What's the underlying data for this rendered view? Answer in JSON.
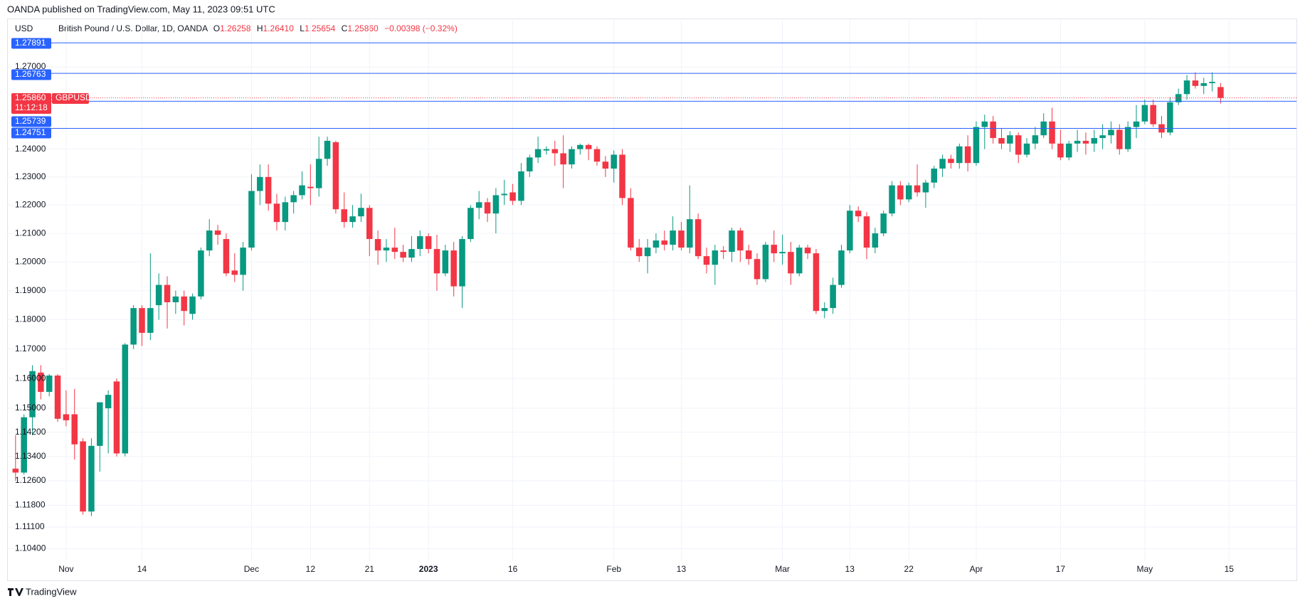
{
  "header": "OANDA published on TradingView.com, May 11, 2023 09:51 UTC",
  "footer": "TradingView",
  "chart_data": {
    "type": "candlestick",
    "currency": "USD",
    "legend": {
      "symbol": "British Pound / U.S. Dollar, 1D, OANDA",
      "o": "O",
      "open": "1.26258",
      "h": "H",
      "high": "1.26410",
      "l": "L",
      "low": "1.25654",
      "c": "C",
      "close": "1.25860",
      "change": "−0.00398 (−0.32%)"
    },
    "up_color": "#089981",
    "down_color": "#f23645",
    "level_color": "#2962ff",
    "log_scale": true,
    "grid": true,
    "ylim": [
      1.1,
      1.288
    ],
    "yticks": [
      {
        "value": 1.104,
        "label": "1.10400"
      },
      {
        "value": 1.111,
        "label": "1.11100"
      },
      {
        "value": 1.118,
        "label": "1.11800"
      },
      {
        "value": 1.126,
        "label": "1.12600"
      },
      {
        "value": 1.134,
        "label": "1.13400"
      },
      {
        "value": 1.142,
        "label": "1.14200"
      },
      {
        "value": 1.15,
        "label": "1.15000"
      },
      {
        "value": 1.16,
        "label": "1.16000"
      },
      {
        "value": 1.17,
        "label": "1.17000"
      },
      {
        "value": 1.18,
        "label": "1.18000"
      },
      {
        "value": 1.19,
        "label": "1.19000"
      },
      {
        "value": 1.2,
        "label": "1.20000"
      },
      {
        "value": 1.21,
        "label": "1.21000"
      },
      {
        "value": 1.22,
        "label": "1.22000"
      },
      {
        "value": 1.23,
        "label": "1.23000"
      },
      {
        "value": 1.24,
        "label": "1.24000"
      },
      {
        "value": 1.27,
        "label": "1.27000"
      }
    ],
    "xlim": [
      -1,
      152
    ],
    "xticks": [
      {
        "value": 6,
        "label": "Nov"
      },
      {
        "value": 15,
        "label": "14"
      },
      {
        "value": 28,
        "label": "Dec"
      },
      {
        "value": 35,
        "label": "12"
      },
      {
        "value": 42,
        "label": "21"
      },
      {
        "value": 49,
        "label": "2023"
      },
      {
        "value": 59,
        "label": "16"
      },
      {
        "value": 71,
        "label": "Feb"
      },
      {
        "value": 79,
        "label": "13"
      },
      {
        "value": 91,
        "label": "Mar"
      },
      {
        "value": 99,
        "label": "13"
      },
      {
        "value": 106,
        "label": "22"
      },
      {
        "value": 114,
        "label": "Apr"
      },
      {
        "value": 124,
        "label": "17"
      },
      {
        "value": 134,
        "label": "May"
      },
      {
        "value": 144,
        "label": "15"
      }
    ],
    "levels": [
      1.27891,
      1.26763,
      1.25739,
      1.24751
    ],
    "last_price": {
      "value": 1.2586,
      "label": "1.25860"
    },
    "symbol_tag": "GBPUSD",
    "countdown": "11:12:18",
    "ohlc": [
      [
        1.13,
        1.141,
        1.126,
        1.1287
      ],
      [
        1.1287,
        1.148,
        1.128,
        1.147
      ],
      [
        1.147,
        1.1645,
        1.141,
        1.1625
      ],
      [
        1.162,
        1.1645,
        1.153,
        1.1555
      ],
      [
        1.1555,
        1.1615,
        1.154,
        1.161
      ],
      [
        1.161,
        1.1615,
        1.1455,
        1.1465
      ],
      [
        1.148,
        1.156,
        1.144,
        1.146
      ],
      [
        1.148,
        1.1565,
        1.133,
        1.138
      ],
      [
        1.139,
        1.14,
        1.115,
        1.116
      ],
      [
        1.116,
        1.14,
        1.1145,
        1.1375
      ],
      [
        1.1375,
        1.152,
        1.129,
        1.152
      ],
      [
        1.15,
        1.156,
        1.135,
        1.1545
      ],
      [
        1.159,
        1.16,
        1.134,
        1.135
      ],
      [
        1.135,
        1.172,
        1.134,
        1.1715
      ],
      [
        1.1715,
        1.185,
        1.17,
        1.184
      ],
      [
        1.184,
        1.185,
        1.171,
        1.1755
      ],
      [
        1.1755,
        1.203,
        1.173,
        1.184
      ],
      [
        1.185,
        1.196,
        1.18,
        1.192
      ],
      [
        1.192,
        1.195,
        1.177,
        1.186
      ],
      [
        1.186,
        1.19,
        1.182,
        1.188
      ],
      [
        1.188,
        1.19,
        1.178,
        1.183
      ],
      [
        1.182,
        1.189,
        1.18,
        1.188
      ],
      [
        1.188,
        1.205,
        1.187,
        1.204
      ],
      [
        1.204,
        1.215,
        1.202,
        1.211
      ],
      [
        1.211,
        1.213,
        1.206,
        1.2095
      ],
      [
        1.208,
        1.21,
        1.195,
        1.196
      ],
      [
        1.197,
        1.203,
        1.193,
        1.1955
      ],
      [
        1.1955,
        1.207,
        1.19,
        1.205
      ],
      [
        1.205,
        1.231,
        1.204,
        1.225
      ],
      [
        1.225,
        1.2345,
        1.22,
        1.23
      ],
      [
        1.23,
        1.2345,
        1.218,
        1.2205
      ],
      [
        1.2205,
        1.224,
        1.211,
        1.214
      ],
      [
        1.214,
        1.223,
        1.211,
        1.221
      ],
      [
        1.221,
        1.225,
        1.217,
        1.2235
      ],
      [
        1.2235,
        1.232,
        1.222,
        1.227
      ],
      [
        1.2265,
        1.2345,
        1.22,
        1.226
      ],
      [
        1.226,
        1.2445,
        1.223,
        1.2365
      ],
      [
        1.2365,
        1.2445,
        1.234,
        1.243
      ],
      [
        1.2425,
        1.243,
        1.217,
        1.2185
      ],
      [
        1.2185,
        1.2245,
        1.212,
        1.214
      ],
      [
        1.214,
        1.22,
        1.212,
        1.216
      ],
      [
        1.216,
        1.224,
        1.214,
        1.219
      ],
      [
        1.219,
        1.22,
        1.202,
        1.208
      ],
      [
        1.208,
        1.211,
        1.199,
        1.204
      ],
      [
        1.204,
        1.208,
        1.2,
        1.205
      ],
      [
        1.205,
        1.212,
        1.201,
        1.2035
      ],
      [
        1.2035,
        1.206,
        1.2,
        1.2015
      ],
      [
        1.2015,
        1.209,
        1.2,
        1.2045
      ],
      [
        1.2045,
        1.211,
        1.202,
        1.209
      ],
      [
        1.209,
        1.21,
        1.203,
        1.2045
      ],
      [
        1.2045,
        1.2095,
        1.19,
        1.196
      ],
      [
        1.196,
        1.206,
        1.195,
        1.204
      ],
      [
        1.204,
        1.207,
        1.188,
        1.1915
      ],
      [
        1.1915,
        1.209,
        1.184,
        1.208
      ],
      [
        1.208,
        1.22,
        1.207,
        1.219
      ],
      [
        1.219,
        1.225,
        1.215,
        1.221
      ],
      [
        1.221,
        1.2225,
        1.214,
        1.217
      ],
      [
        1.217,
        1.226,
        1.21,
        1.2235
      ],
      [
        1.2235,
        1.229,
        1.22,
        1.224
      ],
      [
        1.2245,
        1.2275,
        1.22,
        1.2215
      ],
      [
        1.2215,
        1.235,
        1.22,
        1.232
      ],
      [
        1.232,
        1.238,
        1.23,
        1.237
      ],
      [
        1.237,
        1.2445,
        1.235,
        1.24
      ],
      [
        1.2395,
        1.241,
        1.238,
        1.24
      ],
      [
        1.24,
        1.243,
        1.234,
        1.2385
      ],
      [
        1.2385,
        1.245,
        1.226,
        1.2345
      ],
      [
        1.2345,
        1.241,
        1.233,
        1.24
      ],
      [
        1.24,
        1.242,
        1.238,
        1.2415
      ],
      [
        1.2415,
        1.242,
        1.236,
        1.24
      ],
      [
        1.24,
        1.241,
        1.234,
        1.2355
      ],
      [
        1.2355,
        1.2375,
        1.23,
        1.233
      ],
      [
        1.233,
        1.2395,
        1.228,
        1.238
      ],
      [
        1.238,
        1.24,
        1.22,
        1.2225
      ],
      [
        1.2225,
        1.226,
        1.204,
        1.205
      ],
      [
        1.205,
        1.208,
        1.2,
        1.202
      ],
      [
        1.202,
        1.208,
        1.196,
        1.205
      ],
      [
        1.205,
        1.21,
        1.203,
        1.2075
      ],
      [
        1.2075,
        1.211,
        1.204,
        1.206
      ],
      [
        1.206,
        1.216,
        1.204,
        1.211
      ],
      [
        1.211,
        1.214,
        1.204,
        1.205
      ],
      [
        1.205,
        1.227,
        1.203,
        1.215
      ],
      [
        1.215,
        1.217,
        1.201,
        1.202
      ],
      [
        1.202,
        1.205,
        1.196,
        1.199
      ],
      [
        1.199,
        1.206,
        1.192,
        1.204
      ],
      [
        1.204,
        1.2055,
        1.201,
        1.2035
      ],
      [
        1.2035,
        1.212,
        1.2,
        1.211
      ],
      [
        1.211,
        1.212,
        1.2,
        1.204
      ],
      [
        1.204,
        1.206,
        1.199,
        1.201
      ],
      [
        1.201,
        1.203,
        1.192,
        1.194
      ],
      [
        1.194,
        1.207,
        1.193,
        1.206
      ],
      [
        1.206,
        1.211,
        1.2,
        1.203
      ],
      [
        1.203,
        1.2095,
        1.199,
        1.2035
      ],
      [
        1.2035,
        1.207,
        1.192,
        1.196
      ],
      [
        1.196,
        1.206,
        1.195,
        1.205
      ],
      [
        1.205,
        1.206,
        1.201,
        1.203
      ],
      [
        1.203,
        1.2045,
        1.182,
        1.183
      ],
      [
        1.183,
        1.186,
        1.1805,
        1.184
      ],
      [
        1.184,
        1.1945,
        1.182,
        1.192
      ],
      [
        1.192,
        1.206,
        1.191,
        1.204
      ],
      [
        1.204,
        1.22,
        1.203,
        1.218
      ],
      [
        1.218,
        1.2195,
        1.214,
        1.216
      ],
      [
        1.216,
        1.2175,
        1.201,
        1.205
      ],
      [
        1.205,
        1.212,
        1.203,
        1.21
      ],
      [
        1.21,
        1.218,
        1.209,
        1.217
      ],
      [
        1.217,
        1.2285,
        1.216,
        1.227
      ],
      [
        1.227,
        1.2285,
        1.22,
        1.222
      ],
      [
        1.222,
        1.228,
        1.221,
        1.227
      ],
      [
        1.227,
        1.2345,
        1.223,
        1.2245
      ],
      [
        1.2245,
        1.229,
        1.219,
        1.228
      ],
      [
        1.228,
        1.234,
        1.226,
        1.233
      ],
      [
        1.233,
        1.238,
        1.23,
        1.2365
      ],
      [
        1.2365,
        1.238,
        1.233,
        1.235
      ],
      [
        1.235,
        1.242,
        1.233,
        1.241
      ],
      [
        1.241,
        1.245,
        1.232,
        1.235
      ],
      [
        1.235,
        1.25,
        1.234,
        1.248
      ],
      [
        1.248,
        1.2525,
        1.24,
        1.25
      ],
      [
        1.25,
        1.252,
        1.242,
        1.244
      ],
      [
        1.244,
        1.2475,
        1.24,
        1.242
      ],
      [
        1.242,
        1.2465,
        1.239,
        1.245
      ],
      [
        1.245,
        1.246,
        1.235,
        1.238
      ],
      [
        1.238,
        1.244,
        1.237,
        1.242
      ],
      [
        1.242,
        1.248,
        1.24,
        1.245
      ],
      [
        1.245,
        1.253,
        1.244,
        1.25
      ],
      [
        1.25,
        1.255,
        1.24,
        1.242
      ],
      [
        1.242,
        1.247,
        1.236,
        1.237
      ],
      [
        1.237,
        1.243,
        1.236,
        1.242
      ],
      [
        1.242,
        1.247,
        1.239,
        1.243
      ],
      [
        1.243,
        1.246,
        1.238,
        1.242
      ],
      [
        1.242,
        1.247,
        1.239,
        1.244
      ],
      [
        1.244,
        1.249,
        1.24,
        1.245
      ],
      [
        1.245,
        1.25,
        1.242,
        1.247
      ],
      [
        1.247,
        1.249,
        1.238,
        1.24
      ],
      [
        1.24,
        1.25,
        1.239,
        1.248
      ],
      [
        1.248,
        1.256,
        1.244,
        1.25
      ],
      [
        1.25,
        1.258,
        1.249,
        1.256
      ],
      [
        1.256,
        1.258,
        1.248,
        1.249
      ],
      [
        1.249,
        1.252,
        1.244,
        1.246
      ],
      [
        1.246,
        1.259,
        1.245,
        1.257
      ],
      [
        1.257,
        1.262,
        1.256,
        1.26
      ],
      [
        1.26,
        1.267,
        1.258,
        1.265
      ],
      [
        1.265,
        1.268,
        1.262,
        1.263
      ],
      [
        1.263,
        1.266,
        1.26,
        1.264
      ],
      [
        1.264,
        1.268,
        1.261,
        1.2645
      ],
      [
        1.26258,
        1.2641,
        1.25654,
        1.2586
      ]
    ]
  }
}
